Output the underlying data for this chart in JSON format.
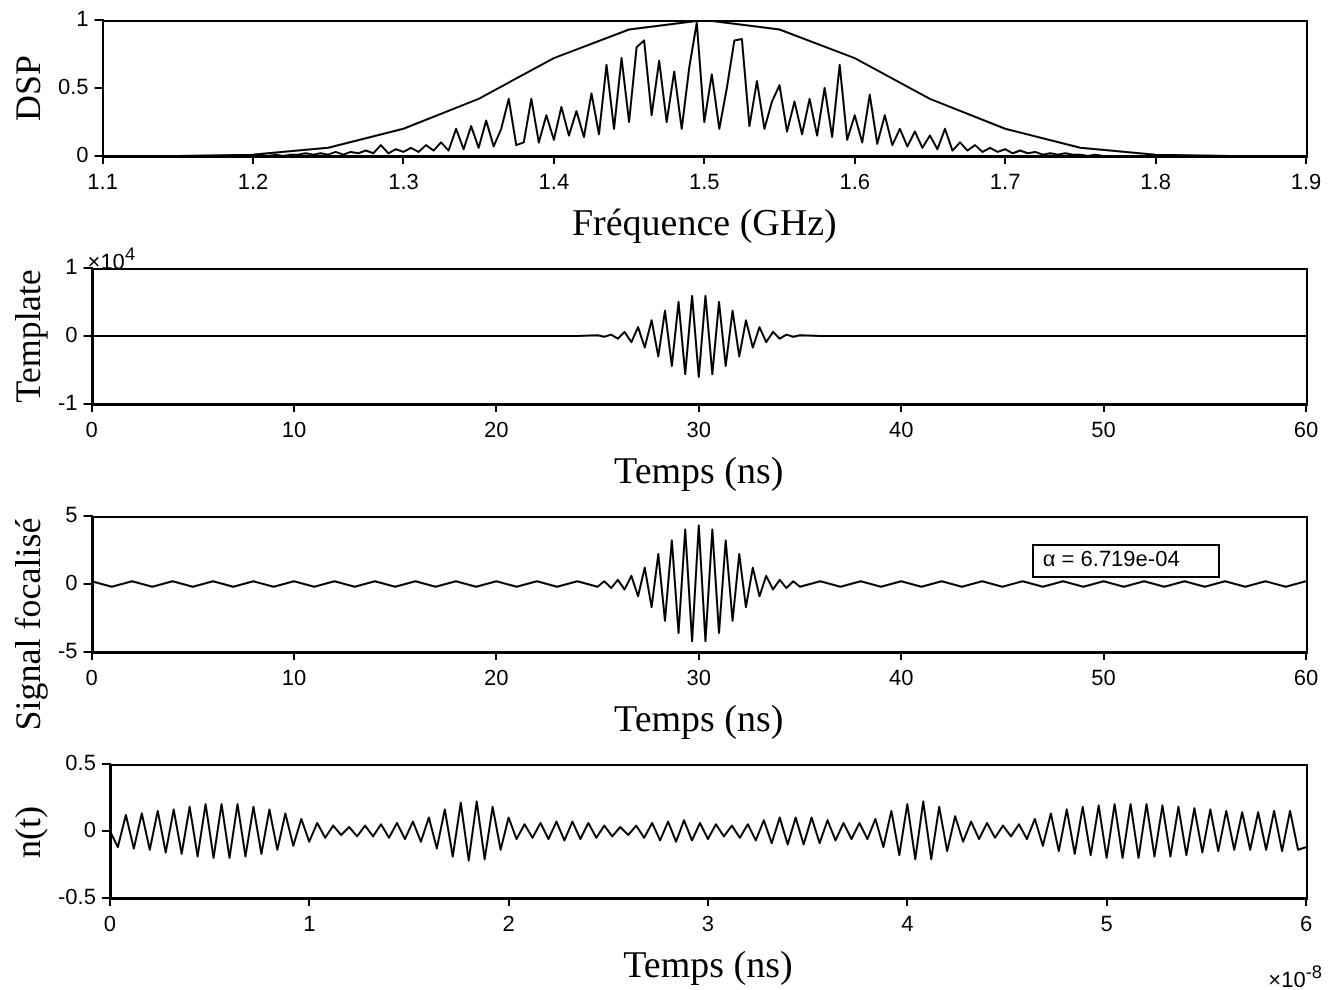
{
  "chart_data": [
    {
      "type": "line",
      "xlabel": "Fréquence (GHz)",
      "ylabel": "DSP",
      "xlim": [
        1.1,
        1.9
      ],
      "xticks": [
        1.1,
        1.2,
        1.3,
        1.4,
        1.5,
        1.6,
        1.7,
        1.8,
        1.9
      ],
      "ylim": [
        0,
        1
      ],
      "yticks": [
        0,
        0.5,
        1
      ],
      "grid": false,
      "legend": false,
      "series": [
        {
          "color": "#000000",
          "x": [
            1.1,
            1.2,
            1.205,
            1.21,
            1.215,
            1.22,
            1.225,
            1.23,
            1.235,
            1.24,
            1.245,
            1.25,
            1.255,
            1.26,
            1.265,
            1.27,
            1.275,
            1.28,
            1.285,
            1.29,
            1.295,
            1.3,
            1.305,
            1.31,
            1.315,
            1.32,
            1.325,
            1.33,
            1.335,
            1.34,
            1.345,
            1.35,
            1.355,
            1.36,
            1.365,
            1.37,
            1.375,
            1.38,
            1.385,
            1.39,
            1.395,
            1.4,
            1.405,
            1.41,
            1.415,
            1.42,
            1.425,
            1.43,
            1.435,
            1.44,
            1.445,
            1.45,
            1.455,
            1.46,
            1.465,
            1.47,
            1.475,
            1.48,
            1.485,
            1.49,
            1.495,
            1.5,
            1.505,
            1.51,
            1.515,
            1.52,
            1.525,
            1.53,
            1.535,
            1.54,
            1.545,
            1.55,
            1.555,
            1.56,
            1.565,
            1.57,
            1.575,
            1.58,
            1.585,
            1.59,
            1.595,
            1.6,
            1.605,
            1.61,
            1.615,
            1.62,
            1.625,
            1.63,
            1.635,
            1.64,
            1.645,
            1.65,
            1.655,
            1.66,
            1.665,
            1.67,
            1.675,
            1.68,
            1.685,
            1.69,
            1.695,
            1.7,
            1.705,
            1.71,
            1.715,
            1.72,
            1.725,
            1.73,
            1.735,
            1.74,
            1.745,
            1.75,
            1.755,
            1.76,
            1.765,
            1.77,
            1.9
          ],
          "values": [
            0,
            0,
            0.01,
            0,
            0.01,
            0,
            0.01,
            0.01,
            0.02,
            0.01,
            0.02,
            0.01,
            0.03,
            0.01,
            0.03,
            0.02,
            0.04,
            0.02,
            0.08,
            0.02,
            0.05,
            0.03,
            0.06,
            0.03,
            0.08,
            0.04,
            0.1,
            0.04,
            0.2,
            0.05,
            0.22,
            0.06,
            0.26,
            0.07,
            0.2,
            0.42,
            0.08,
            0.1,
            0.42,
            0.1,
            0.3,
            0.12,
            0.36,
            0.15,
            0.33,
            0.14,
            0.46,
            0.16,
            0.67,
            0.2,
            0.72,
            0.25,
            0.8,
            0.85,
            0.3,
            0.7,
            0.25,
            0.62,
            0.2,
            0.65,
            0.98,
            0.25,
            0.6,
            0.2,
            0.5,
            0.85,
            0.86,
            0.22,
            0.55,
            0.2,
            0.4,
            0.52,
            0.18,
            0.4,
            0.16,
            0.42,
            0.15,
            0.5,
            0.14,
            0.67,
            0.12,
            0.3,
            0.1,
            0.45,
            0.09,
            0.3,
            0.08,
            0.2,
            0.07,
            0.18,
            0.06,
            0.15,
            0.05,
            0.2,
            0.04,
            0.1,
            0.04,
            0.08,
            0.03,
            0.06,
            0.03,
            0.05,
            0.02,
            0.04,
            0.02,
            0.03,
            0.01,
            0.02,
            0.01,
            0.02,
            0.01,
            0.01,
            0,
            0.01,
            0,
            0,
            0
          ]
        },
        {
          "color": "#000000",
          "x": [
            1.1,
            1.15,
            1.2,
            1.25,
            1.3,
            1.35,
            1.4,
            1.45,
            1.5,
            1.55,
            1.6,
            1.65,
            1.7,
            1.75,
            1.8,
            1.85,
            1.9
          ],
          "values": [
            0,
            0,
            0.01,
            0.06,
            0.2,
            0.42,
            0.72,
            0.93,
            1,
            0.93,
            0.72,
            0.42,
            0.2,
            0.06,
            0.01,
            0,
            0
          ]
        }
      ]
    },
    {
      "type": "line",
      "xlabel": "Temps (ns)",
      "ylabel": "Template",
      "xlim": [
        0,
        60
      ],
      "xticks": [
        0,
        10,
        20,
        30,
        40,
        50,
        60
      ],
      "ylim": [
        -1,
        1
      ],
      "yticks": [
        -1,
        0,
        1
      ],
      "grid": false,
      "legend": false,
      "annotations": [
        "×10$^{4}$"
      ],
      "series": [
        {
          "color": "#000000",
          "x": [
            0,
            24,
            25,
            25.33,
            25.67,
            26,
            26.33,
            26.67,
            27,
            27.33,
            27.67,
            28,
            28.33,
            28.67,
            29,
            29.33,
            29.67,
            30,
            30.33,
            30.67,
            31,
            31.33,
            31.67,
            32,
            32.33,
            32.67,
            33,
            33.33,
            33.67,
            34,
            34.33,
            34.67,
            35,
            36,
            60
          ],
          "values": [
            0,
            0,
            0.01,
            -0.01,
            0.02,
            -0.04,
            0.06,
            -0.09,
            0.13,
            -0.17,
            0.23,
            -0.3,
            0.37,
            -0.44,
            0.5,
            -0.56,
            0.59,
            -0.6,
            0.59,
            -0.56,
            0.5,
            -0.44,
            0.37,
            -0.3,
            0.23,
            -0.17,
            0.13,
            -0.09,
            0.06,
            -0.04,
            0.02,
            -0.01,
            0.01,
            0,
            0
          ]
        }
      ]
    },
    {
      "type": "line",
      "xlabel": "Temps (ns)",
      "ylabel": "Signal focalisé",
      "xlim": [
        0,
        60
      ],
      "xticks": [
        0,
        10,
        20,
        30,
        40,
        50,
        60
      ],
      "ylim": [
        -5,
        5
      ],
      "yticks": [
        -5,
        0,
        5
      ],
      "grid": false,
      "legend": false,
      "annotations": [
        "α = 6.719e-04"
      ],
      "series": [
        {
          "color": "#000000",
          "x": [
            0,
            1,
            2,
            3,
            4,
            5,
            6,
            7,
            8,
            9,
            10,
            11,
            12,
            13,
            14,
            15,
            16,
            17,
            18,
            19,
            20,
            21,
            22,
            23,
            24,
            25,
            25.33,
            25.67,
            26,
            26.33,
            26.67,
            27,
            27.33,
            27.67,
            28,
            28.33,
            28.67,
            29,
            29.33,
            29.67,
            30,
            30.33,
            30.67,
            31,
            31.33,
            31.67,
            32,
            32.33,
            32.67,
            33,
            33.33,
            33.67,
            34,
            34.33,
            34.67,
            35,
            36,
            37,
            38,
            39,
            40,
            41,
            42,
            43,
            44,
            45,
            46,
            47,
            48,
            49,
            50,
            51,
            52,
            53,
            54,
            55,
            56,
            57,
            58,
            59,
            60
          ],
          "values": [
            0.2,
            -0.2,
            0.2,
            -0.2,
            0.2,
            -0.2,
            0.2,
            -0.2,
            0.2,
            -0.2,
            0.2,
            -0.2,
            0.2,
            -0.2,
            0.2,
            -0.2,
            0.2,
            -0.2,
            0.2,
            -0.2,
            0.2,
            -0.2,
            0.2,
            -0.2,
            0.2,
            -0.2,
            0.2,
            -0.3,
            0.3,
            -0.4,
            0.6,
            -0.9,
            1.2,
            -1.7,
            2.2,
            -2.7,
            3.2,
            -3.6,
            4,
            -4.2,
            4.3,
            -4.2,
            4,
            -3.6,
            3.2,
            -2.7,
            2.2,
            -1.7,
            1.2,
            -0.9,
            0.6,
            -0.4,
            0.3,
            -0.3,
            0.2,
            -0.2,
            0.2,
            -0.2,
            0.2,
            -0.2,
            0.2,
            -0.2,
            0.2,
            -0.2,
            0.2,
            -0.2,
            0.2,
            -0.2,
            0.2,
            -0.2,
            0.2,
            -0.2,
            0.2,
            -0.2,
            0.2,
            -0.2,
            0.2,
            -0.2,
            0.2,
            -0.2,
            0.2
          ]
        }
      ]
    },
    {
      "type": "line",
      "xlabel": "Temps (ns)",
      "ylabel": "n(t)",
      "xlim": [
        0,
        6
      ],
      "xticks": [
        0,
        1,
        2,
        3,
        4,
        5,
        6
      ],
      "ylim": [
        -0.5,
        0.5
      ],
      "yticks": [
        -0.5,
        0,
        0.5
      ],
      "grid": false,
      "legend": false,
      "annotations": [
        "×10$^{-8}$"
      ],
      "series": [
        {
          "color": "#000000",
          "x": [
            0,
            0.04,
            0.08,
            0.12,
            0.16,
            0.2,
            0.24,
            0.28,
            0.32,
            0.36,
            0.4,
            0.44,
            0.48,
            0.52,
            0.56,
            0.6,
            0.64,
            0.68,
            0.72,
            0.76,
            0.8,
            0.84,
            0.88,
            0.92,
            0.96,
            1,
            1.04,
            1.08,
            1.12,
            1.16,
            1.2,
            1.24,
            1.28,
            1.32,
            1.36,
            1.4,
            1.44,
            1.48,
            1.52,
            1.56,
            1.6,
            1.64,
            1.68,
            1.72,
            1.76,
            1.8,
            1.84,
            1.88,
            1.92,
            1.96,
            2,
            2.04,
            2.08,
            2.12,
            2.16,
            2.2,
            2.24,
            2.28,
            2.32,
            2.36,
            2.4,
            2.44,
            2.48,
            2.52,
            2.56,
            2.6,
            2.64,
            2.68,
            2.72,
            2.76,
            2.8,
            2.84,
            2.88,
            2.92,
            2.96,
            3,
            3.04,
            3.08,
            3.12,
            3.16,
            3.2,
            3.24,
            3.28,
            3.32,
            3.36,
            3.4,
            3.44,
            3.48,
            3.52,
            3.56,
            3.6,
            3.64,
            3.68,
            3.72,
            3.76,
            3.8,
            3.84,
            3.88,
            3.92,
            3.96,
            4,
            4.04,
            4.08,
            4.12,
            4.16,
            4.2,
            4.24,
            4.28,
            4.32,
            4.36,
            4.4,
            4.44,
            4.48,
            4.52,
            4.56,
            4.6,
            4.64,
            4.68,
            4.72,
            4.76,
            4.8,
            4.84,
            4.88,
            4.92,
            4.96,
            5,
            5.04,
            5.08,
            5.12,
            5.16,
            5.2,
            5.24,
            5.28,
            5.32,
            5.36,
            5.4,
            5.44,
            5.48,
            5.52,
            5.56,
            5.6,
            5.64,
            5.68,
            5.72,
            5.76,
            5.8,
            5.84,
            5.88,
            5.92,
            5.96,
            6
          ],
          "values": [
            0,
            -0.12,
            0.12,
            -0.13,
            0.13,
            -0.14,
            0.15,
            -0.16,
            0.16,
            -0.17,
            0.18,
            -0.19,
            0.2,
            -0.2,
            0.2,
            -0.2,
            0.2,
            -0.19,
            0.18,
            -0.17,
            0.16,
            -0.14,
            0.13,
            -0.11,
            0.09,
            -0.08,
            0.06,
            -0.05,
            0.04,
            -0.03,
            0.03,
            -0.04,
            0.04,
            -0.04,
            0.05,
            -0.05,
            0.06,
            -0.06,
            0.07,
            -0.08,
            0.1,
            -0.13,
            0.16,
            -0.19,
            0.21,
            -0.22,
            0.22,
            -0.21,
            0.18,
            -0.14,
            0.1,
            -0.06,
            0.05,
            -0.05,
            0.06,
            -0.06,
            0.07,
            -0.07,
            0.07,
            -0.06,
            0.06,
            -0.05,
            0.04,
            -0.04,
            0.03,
            -0.03,
            0.04,
            -0.05,
            0.06,
            -0.07,
            0.07,
            -0.08,
            0.08,
            -0.07,
            0.06,
            -0.06,
            0.05,
            -0.04,
            0.04,
            -0.05,
            0.05,
            -0.07,
            0.08,
            -0.09,
            0.1,
            -0.1,
            0.1,
            -0.1,
            0.1,
            -0.09,
            0.08,
            -0.07,
            0.06,
            -0.06,
            0.06,
            -0.06,
            0.09,
            -0.12,
            0.15,
            -0.18,
            0.2,
            -0.21,
            0.22,
            -0.21,
            0.18,
            -0.15,
            0.11,
            -0.08,
            0.07,
            -0.06,
            0.06,
            -0.05,
            0.04,
            -0.04,
            0.05,
            -0.06,
            0.09,
            -0.11,
            0.13,
            -0.15,
            0.16,
            -0.17,
            0.18,
            -0.18,
            0.19,
            -0.2,
            0.2,
            -0.2,
            0.2,
            -0.2,
            0.2,
            -0.19,
            0.19,
            -0.19,
            0.18,
            -0.18,
            0.17,
            -0.16,
            0.16,
            -0.15,
            0.15,
            -0.14,
            0.14,
            -0.14,
            0.14,
            -0.14,
            0.15,
            -0.15,
            0.15,
            -0.14,
            -0.12
          ]
        }
      ]
    }
  ]
}
